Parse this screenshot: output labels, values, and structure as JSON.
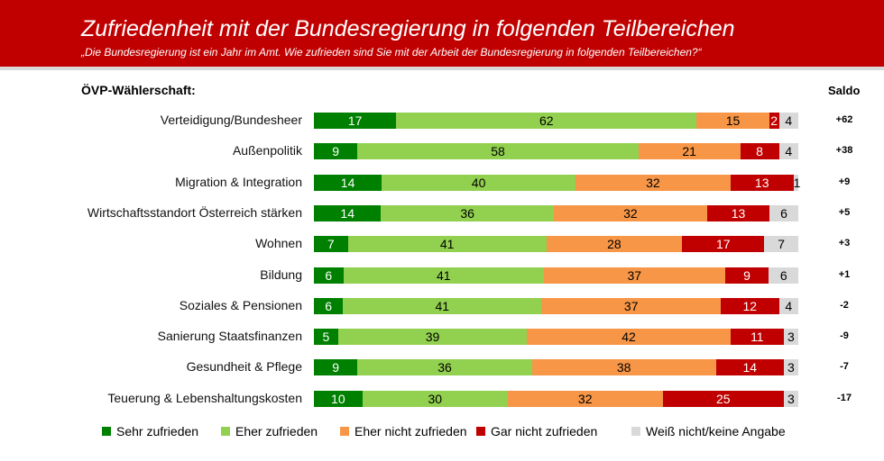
{
  "header": {
    "title": "Zufriedenheit mit der Bundesregierung in folgenden Teilbereichen",
    "subtitle": "„Die Bundesregierung ist ein Jahr im Amt. Wie zufrieden sind Sie mit der Arbeit der Bundesregierung in folgenden Teilbereichen?“"
  },
  "chart_data": {
    "type": "bar",
    "orientation": "horizontal-stacked",
    "group_label": "ÖVP-Wählerschaft:",
    "saldo_header": "Saldo",
    "categories": [
      "Verteidigung/Bundesheer",
      "Außenpolitik",
      "Migration & Integration",
      "Wirtschaftsstandort Österreich stärken",
      "Wohnen",
      "Bildung",
      "Soziales & Pensionen",
      "Sanierung Staatsfinanzen",
      "Gesundheit & Pflege",
      "Teuerung & Lebenshaltungskosten"
    ],
    "series": [
      {
        "name": "Sehr zufrieden",
        "color": "#008000",
        "text_color": "#ffffff",
        "values": [
          17,
          9,
          14,
          14,
          7,
          6,
          6,
          5,
          9,
          10
        ]
      },
      {
        "name": "Eher zufrieden",
        "color": "#92d050",
        "text_color": "#000000",
        "values": [
          62,
          58,
          40,
          36,
          41,
          41,
          41,
          39,
          36,
          30
        ]
      },
      {
        "name": "Eher nicht zufrieden",
        "color": "#f79646",
        "text_color": "#000000",
        "values": [
          15,
          21,
          32,
          32,
          28,
          37,
          37,
          42,
          38,
          32
        ]
      },
      {
        "name": "Gar nicht zufrieden",
        "color": "#c00000",
        "text_color": "#ffffff",
        "values": [
          2,
          8,
          13,
          13,
          17,
          9,
          12,
          11,
          14,
          25
        ]
      },
      {
        "name": "Weiß nicht/keine Angabe",
        "color": "#d9d9d9",
        "text_color": "#000000",
        "values": [
          4,
          4,
          1,
          6,
          7,
          6,
          4,
          3,
          3,
          3
        ]
      }
    ],
    "saldo": [
      "+62",
      "+38",
      "+9",
      "+5",
      "+3",
      "+1",
      "-2",
      "-9",
      "-7",
      "-17"
    ],
    "legend_position": "bottom",
    "grid": false
  }
}
